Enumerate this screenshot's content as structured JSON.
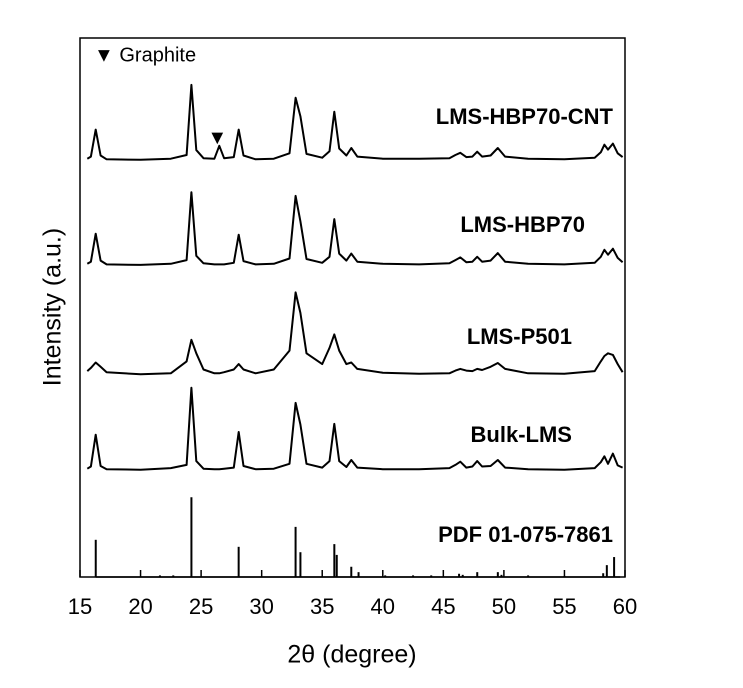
{
  "chart_data": {
    "type": "line",
    "xlabel": "2θ (degree)",
    "ylabel": "Intensity (a.u.)",
    "xlim": [
      15,
      60
    ],
    "xticks": [
      15,
      20,
      25,
      30,
      35,
      40,
      45,
      50,
      55,
      60
    ],
    "ylim": [
      0,
      100
    ],
    "annotations": [
      {
        "text": "▼ Graphite"
      }
    ],
    "graphite_marker": {
      "symbol": "▼",
      "x": 26.5,
      "y": 81.3
    },
    "x": [
      15.6,
      15.9,
      16.3,
      16.7,
      17.2,
      20,
      22.5,
      23.8,
      24.2,
      24.6,
      25.2,
      26.1,
      26.5,
      26.9,
      27.7,
      28.1,
      28.5,
      29.5,
      31,
      32.3,
      32.8,
      33.2,
      33.7,
      35,
      35.6,
      36.0,
      36.4,
      37.0,
      37.4,
      37.9,
      40,
      43,
      45.5,
      46.0,
      46.4,
      46.9,
      47.4,
      47.8,
      48.2,
      48.9,
      49.5,
      50.1,
      52,
      55,
      57.5,
      58.0,
      58.3,
      58.6,
      59.0,
      59.4,
      59.8
    ],
    "series": [
      {
        "name": "LMS-HBP70-CNT",
        "color": "#000000",
        "values": [
          77.6,
          78.0,
          83.0,
          78.2,
          77.5,
          77.4,
          77.6,
          78.3,
          91.3,
          79.2,
          77.7,
          77.6,
          80.0,
          77.7,
          77.9,
          83.0,
          78.2,
          77.5,
          77.6,
          78.6,
          88.9,
          85.5,
          78.5,
          77.8,
          79.0,
          86.3,
          79.5,
          78.2,
          79.6,
          78.0,
          77.6,
          77.6,
          77.7,
          78.3,
          78.7,
          77.9,
          78.0,
          78.9,
          78.0,
          78.2,
          79.6,
          78.0,
          77.6,
          77.5,
          77.8,
          78.8,
          80.2,
          79.3,
          80.4,
          78.6,
          77.9
        ]
      },
      {
        "name": "LMS-HBP70",
        "color": "#000000",
        "values": [
          58.1,
          58.5,
          63.7,
          58.7,
          58.0,
          57.9,
          58.1,
          58.8,
          71.4,
          59.6,
          58.2,
          58.0,
          58.0,
          58.0,
          58.3,
          63.5,
          58.6,
          58.0,
          58.1,
          59.1,
          70.7,
          66.0,
          59.0,
          58.3,
          59.4,
          66.4,
          60.0,
          58.7,
          60.0,
          58.5,
          58.1,
          58.0,
          58.2,
          58.8,
          59.3,
          58.4,
          58.5,
          59.4,
          58.5,
          58.7,
          60.1,
          58.5,
          58.1,
          58.0,
          58.3,
          59.4,
          60.7,
          59.8,
          60.9,
          59.2,
          58.4
        ]
      },
      {
        "name": "LMS-P501",
        "color": "#000000",
        "values": [
          38.2,
          38.8,
          39.8,
          39.0,
          38.0,
          37.6,
          37.8,
          40.0,
          44.0,
          41.5,
          38.5,
          37.8,
          37.8,
          38.0,
          38.5,
          39.5,
          38.5,
          37.8,
          38.5,
          42.0,
          52.8,
          49.0,
          41.5,
          39.5,
          42.5,
          45.0,
          42.0,
          39.5,
          39.8,
          38.6,
          37.9,
          37.7,
          37.8,
          38.3,
          38.6,
          38.3,
          38.2,
          38.6,
          38.4,
          39.0,
          39.7,
          38.6,
          37.8,
          37.7,
          38.2,
          40.0,
          41.0,
          41.5,
          41.2,
          39.5,
          38.0
        ]
      },
      {
        "name": "Bulk-LMS",
        "color": "#000000",
        "values": [
          20.1,
          20.5,
          26.4,
          20.6,
          20.0,
          19.9,
          20.2,
          20.8,
          35.1,
          21.5,
          20.1,
          20.0,
          20.0,
          20.1,
          20.3,
          26.9,
          20.6,
          20.0,
          20.1,
          21.0,
          32.3,
          28.3,
          21.0,
          20.3,
          21.5,
          28.4,
          21.5,
          20.4,
          21.7,
          20.3,
          20.0,
          20.0,
          20.2,
          20.8,
          21.4,
          20.3,
          20.5,
          21.5,
          20.5,
          20.6,
          21.7,
          20.3,
          20.0,
          19.9,
          20.2,
          21.3,
          22.4,
          21.0,
          22.9,
          20.7,
          20.3
        ]
      },
      {
        "name": "PDF 01-075-7861",
        "color": "#000000",
        "type": "stem",
        "x": [
          16.3,
          21.6,
          22.7,
          24.2,
          28.1,
          32.8,
          33.2,
          36.0,
          36.2,
          37.4,
          38.0,
          40.2,
          42.5,
          44.0,
          46.3,
          46.6,
          47.8,
          49.5,
          49.8,
          52.0,
          55.0,
          58.2,
          58.5,
          59.1
        ],
        "values": [
          6.9,
          0.3,
          0.3,
          14.8,
          5.6,
          9.3,
          4.6,
          6.1,
          4.1,
          1.9,
          0.9,
          0.3,
          0.3,
          0.3,
          0.6,
          0.4,
          0.9,
          0.9,
          0.4,
          0.3,
          0.2,
          0.7,
          2.2,
          3.7
        ]
      }
    ]
  }
}
